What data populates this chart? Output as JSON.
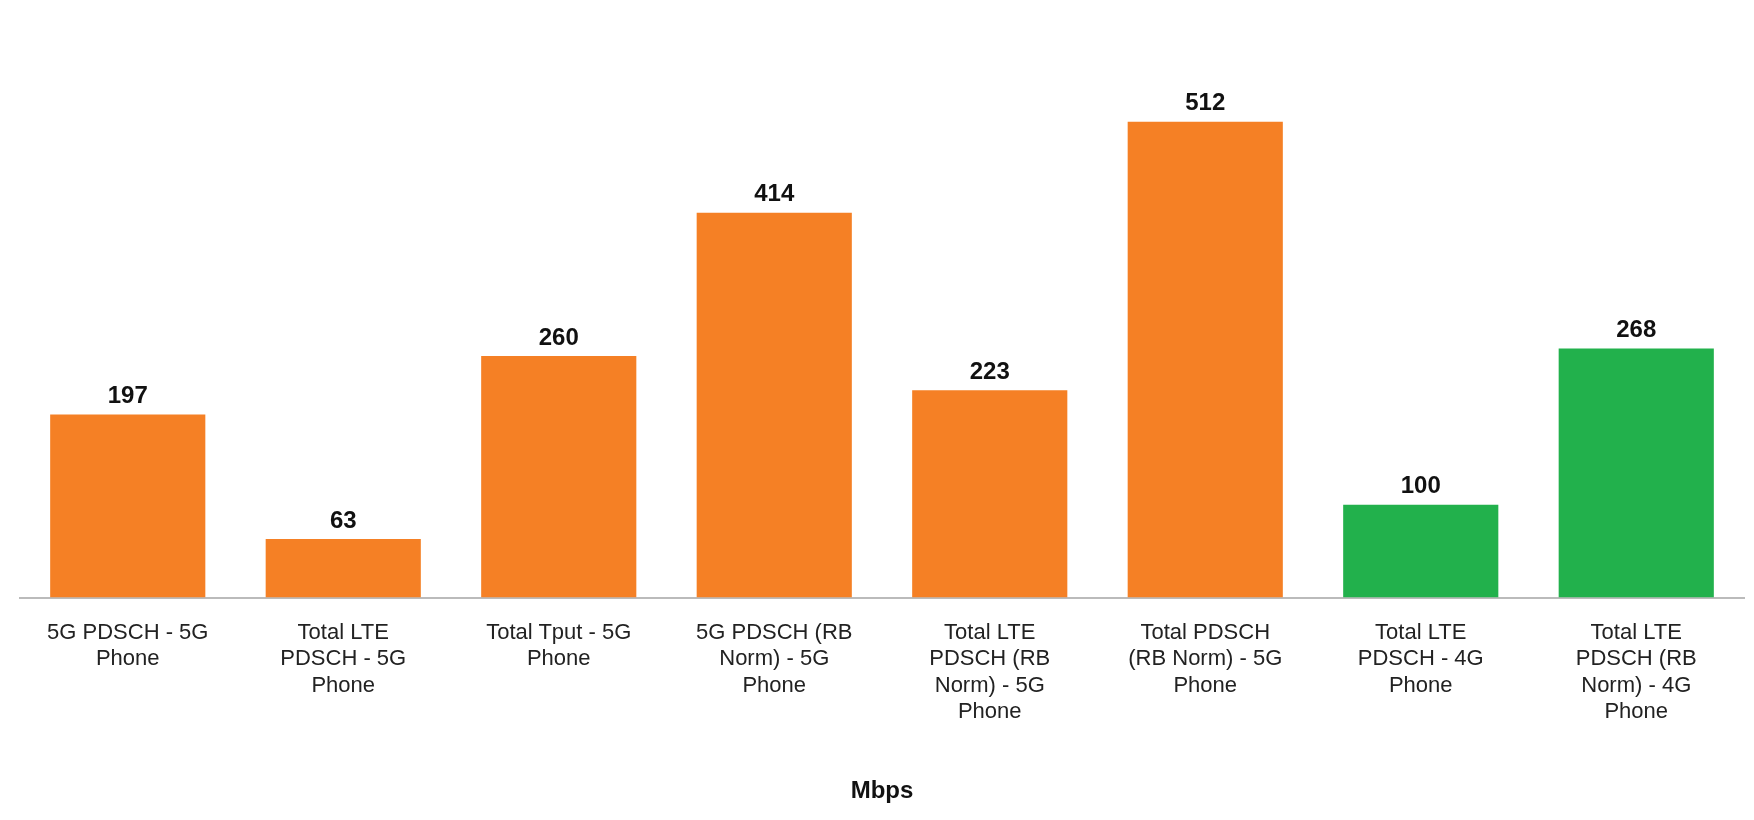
{
  "chart_data": {
    "type": "bar",
    "xlabel": "Mbps",
    "categories": [
      "5G PDSCH - 5G Phone",
      "Total LTE PDSCH - 5G Phone",
      "Total Tput - 5G Phone",
      "5G PDSCH (RB Norm) - 5G Phone",
      "Total LTE PDSCH (RB Norm) - 5G Phone",
      "Total PDSCH (RB Norm) - 5G Phone",
      "Total LTE PDSCH - 4G Phone",
      "Total LTE PDSCH (RB Norm) - 4G Phone"
    ],
    "values": [
      197,
      63,
      260,
      414,
      223,
      512,
      100,
      268
    ],
    "colors": [
      "#f58025",
      "#f58025",
      "#f58025",
      "#f58025",
      "#f58025",
      "#f58025",
      "#22b14c",
      "#22b14c"
    ],
    "tick_labels": "x",
    "data_labels": true
  }
}
